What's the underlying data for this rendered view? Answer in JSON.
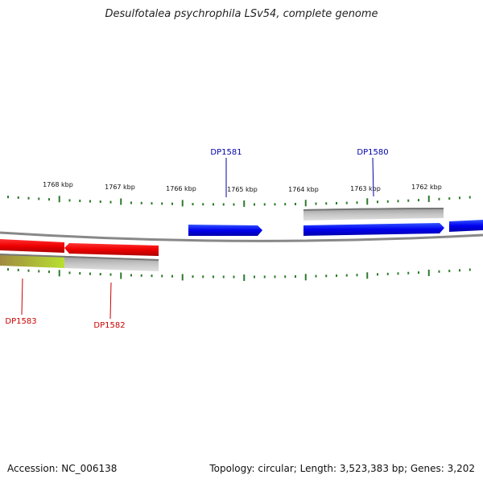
{
  "title": "Desulfotalea psychrophila LSv54, complete genome",
  "footer": {
    "accession": "Accession: NC_006138",
    "stats": "Topology: circular; Length: 3,523,383 bp; Genes: 3,202"
  },
  "scale": {
    "unit": "kbp",
    "major_labels": [
      "1768 kbp",
      "1767 kbp",
      "1766 kbp",
      "1765 kbp",
      "1764 kbp",
      "1763 kbp",
      "1762 kbp"
    ]
  },
  "genes": [
    {
      "name": "DP1583",
      "strand": "reverse",
      "color": "#dd0000"
    },
    {
      "name": "DP1582",
      "strand": "reverse",
      "color": "#dd0000"
    },
    {
      "name": "DP1581",
      "strand": "forward",
      "color": "#0000cc"
    },
    {
      "name": "DP1580",
      "strand": "forward",
      "color": "#0000cc"
    }
  ],
  "colors": {
    "forward_gene": "#0000ee",
    "reverse_gene": "#ee0000",
    "feature_band": "#bbbbbb",
    "backbone": "#888888",
    "ticks": "#2a7a2a",
    "gene_label_forward": "#0000aa",
    "gene_label_reverse": "#cc0000"
  }
}
